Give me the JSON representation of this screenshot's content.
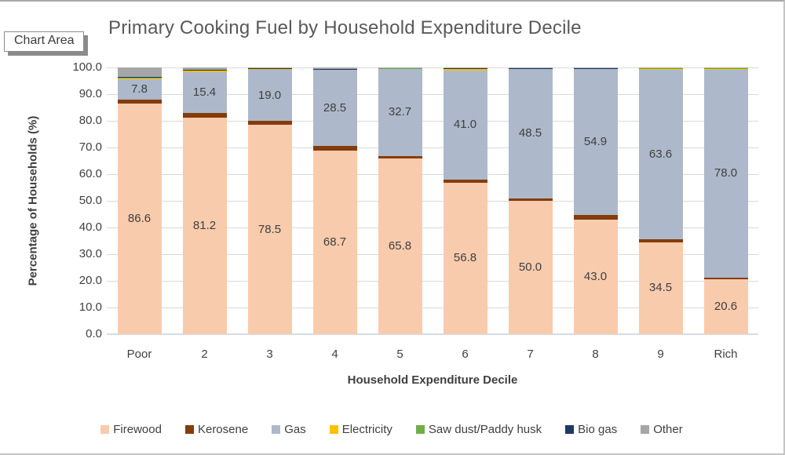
{
  "tooltip": {
    "label": "Chart Area"
  },
  "chart_data": {
    "type": "bar",
    "subtype": "stacked-100",
    "title": "Primary Cooking Fuel by Household Expenditure Decile",
    "xlabel": "Household Expenditure Decile",
    "ylabel": "Percentage of Households (%)",
    "ylim": [
      0,
      100
    ],
    "ytick_step": 10,
    "ytick_decimals": 1,
    "grid": true,
    "legend_position": "bottom",
    "categories": [
      "Poor",
      "2",
      "3",
      "4",
      "5",
      "6",
      "7",
      "8",
      "9",
      "Rich"
    ],
    "series": [
      {
        "name": "Firewood",
        "color": "#F8CBAD",
        "show_labels": true,
        "values": [
          86.6,
          81.2,
          78.5,
          68.7,
          65.8,
          56.8,
          50.0,
          43.0,
          34.5,
          20.6
        ]
      },
      {
        "name": "Kerosene",
        "color": "#843C0C",
        "show_labels": false,
        "values": [
          1.2,
          1.6,
          1.5,
          1.9,
          1.1,
          1.1,
          1.0,
          1.6,
          1.0,
          0.6
        ]
      },
      {
        "name": "Gas",
        "color": "#ADB9CA",
        "show_labels": true,
        "values": [
          7.8,
          15.4,
          19.0,
          28.5,
          32.7,
          41.0,
          48.5,
          54.9,
          63.6,
          78.0
        ]
      },
      {
        "name": "Electricity",
        "color": "#FFC000",
        "show_labels": false,
        "values": [
          0.6,
          0.5,
          0.6,
          0.3,
          0.2,
          0.8,
          0.2,
          0.2,
          0.7,
          0.6
        ]
      },
      {
        "name": "Saw dust/Paddy husk",
        "color": "#70AD47",
        "show_labels": false,
        "values": [
          0.1,
          0.5,
          0.1,
          0.1,
          0.05,
          0.05,
          0.05,
          0.05,
          0.05,
          0.05
        ]
      },
      {
        "name": "Bio gas",
        "color": "#1F3864",
        "show_labels": false,
        "values": [
          0.1,
          0.05,
          0.05,
          0.05,
          0.05,
          0.05,
          0.05,
          0.05,
          0.05,
          0.05
        ]
      },
      {
        "name": "Other",
        "color": "#A6A6A6",
        "show_labels": false,
        "values": [
          3.6,
          0.75,
          0.25,
          0.45,
          0.1,
          0.2,
          0.2,
          0.2,
          0.1,
          0.1
        ]
      }
    ],
    "labeled_series": [
      "Firewood",
      "Gas"
    ]
  }
}
